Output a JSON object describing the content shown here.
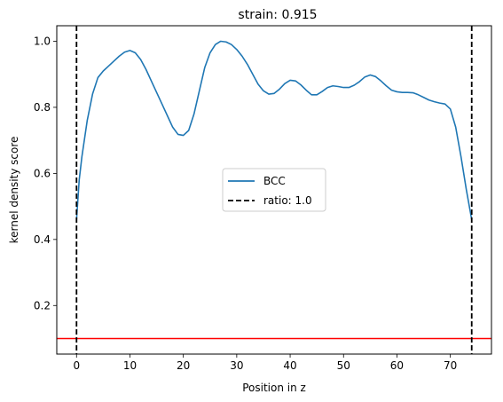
{
  "chart_data": {
    "type": "line",
    "title": "strain: 0.915",
    "xlabel": "Position in z",
    "ylabel": "kernel density score",
    "xlim": [
      -3.7,
      77.7
    ],
    "ylim": [
      0.053,
      1.047
    ],
    "xticks": [
      0,
      10,
      20,
      30,
      40,
      50,
      60,
      70
    ],
    "yticks": [
      0.2,
      0.4,
      0.6,
      0.8,
      1.0
    ],
    "ytick_labels": [
      "0.2",
      "0.4",
      "0.6",
      "0.8",
      "1.0"
    ],
    "grid": false,
    "legend_position": "center",
    "series": [
      {
        "name": "BCC",
        "color": "#1f77b4",
        "style": "solid",
        "x": [
          0,
          0.5,
          1,
          2,
          3,
          4,
          5,
          6,
          7,
          8,
          9,
          10,
          11,
          12,
          13,
          14,
          15,
          16,
          17,
          18,
          19,
          20,
          21,
          22,
          23,
          24,
          25,
          26,
          27,
          28,
          29,
          30,
          31,
          32,
          33,
          34,
          35,
          36,
          37,
          38,
          39,
          40,
          41,
          42,
          43,
          44,
          45,
          46,
          47,
          48,
          49,
          50,
          51,
          52,
          53,
          54,
          55,
          56,
          57,
          58,
          59,
          60,
          61,
          62,
          63,
          64,
          65,
          66,
          67,
          68,
          69,
          70,
          71,
          72,
          73,
          74
        ],
        "y": [
          0.46,
          0.58,
          0.65,
          0.76,
          0.84,
          0.89,
          0.91,
          0.925,
          0.94,
          0.955,
          0.967,
          0.972,
          0.965,
          0.945,
          0.915,
          0.88,
          0.845,
          0.81,
          0.775,
          0.74,
          0.718,
          0.715,
          0.73,
          0.78,
          0.85,
          0.92,
          0.965,
          0.99,
          1.0,
          0.998,
          0.99,
          0.975,
          0.955,
          0.93,
          0.9,
          0.87,
          0.85,
          0.84,
          0.842,
          0.855,
          0.872,
          0.882,
          0.88,
          0.868,
          0.852,
          0.838,
          0.838,
          0.848,
          0.86,
          0.865,
          0.863,
          0.86,
          0.86,
          0.867,
          0.878,
          0.892,
          0.898,
          0.893,
          0.88,
          0.865,
          0.852,
          0.847,
          0.845,
          0.845,
          0.844,
          0.838,
          0.83,
          0.822,
          0.817,
          0.813,
          0.81,
          0.795,
          0.74,
          0.65,
          0.55,
          0.46
        ]
      }
    ],
    "vlines": {
      "name": "ratio: 1.0",
      "color": "#000000",
      "style": "dashed",
      "x": [
        0,
        74
      ]
    },
    "hline": {
      "y": 0.1,
      "color": "#ff0000",
      "style": "solid"
    }
  }
}
